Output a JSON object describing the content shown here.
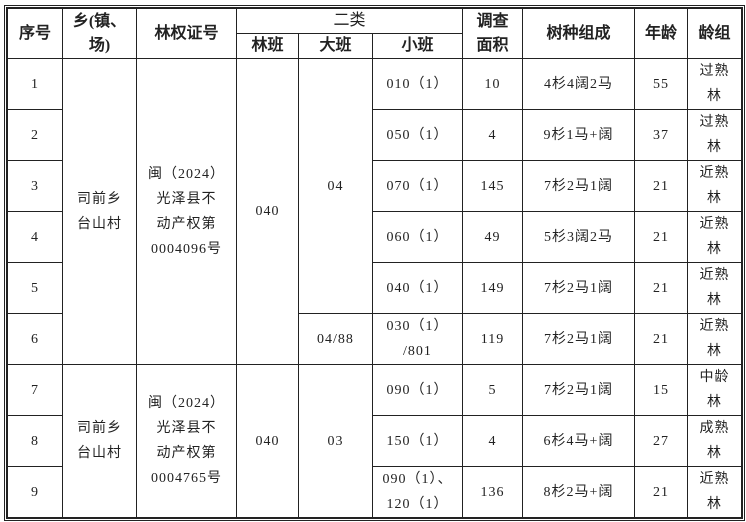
{
  "headers": {
    "seq": "序号",
    "township": "乡(镇、\n场)",
    "cert": "林权证号",
    "class2": "二类",
    "lin_ban": "林班",
    "da_ban": "大班",
    "xiao_ban": "小班",
    "area": "调查\n面积",
    "species": "树种组成",
    "age": "年龄",
    "age_group": "龄组"
  },
  "groups": [
    {
      "township": "司前乡\n台山村",
      "cert": "闽（2024）\n光泽县不\n动产权第\n0004096号",
      "lin_ban": "040",
      "da_ban_a": "04",
      "da_ban_b": "04/88"
    },
    {
      "township": "司前乡\n台山村",
      "cert": "闽（2024）\n光泽县不\n动产权第\n0004765号",
      "lin_ban": "040",
      "da_ban_a": "03"
    }
  ],
  "rows": [
    {
      "seq": "1",
      "xiao_ban": "010（1）",
      "area": "10",
      "species": "4杉4阔2马",
      "age": "55",
      "age_group": "过熟\n林"
    },
    {
      "seq": "2",
      "xiao_ban": "050（1）",
      "area": "4",
      "species": "9杉1马+阔",
      "age": "37",
      "age_group": "过熟\n林"
    },
    {
      "seq": "3",
      "xiao_ban": "070（1）",
      "area": "145",
      "species": "7杉2马1阔",
      "age": "21",
      "age_group": "近熟\n林"
    },
    {
      "seq": "4",
      "xiao_ban": "060（1）",
      "area": "49",
      "species": "5杉3阔2马",
      "age": "21",
      "age_group": "近熟\n林"
    },
    {
      "seq": "5",
      "xiao_ban": "040（1）",
      "area": "149",
      "species": "7杉2马1阔",
      "age": "21",
      "age_group": "近熟\n林"
    },
    {
      "seq": "6",
      "xiao_ban": "030（1）\n/801",
      "area": "119",
      "species": "7杉2马1阔",
      "age": "21",
      "age_group": "近熟\n林"
    },
    {
      "seq": "7",
      "xiao_ban": "090（1）",
      "area": "5",
      "species": "7杉2马1阔",
      "age": "15",
      "age_group": "中龄\n林"
    },
    {
      "seq": "8",
      "xiao_ban": "150（1）",
      "area": "4",
      "species": "6杉4马+阔",
      "age": "27",
      "age_group": "成熟\n林"
    },
    {
      "seq": "9",
      "xiao_ban": "090（1）、\n120（1）",
      "area": "136",
      "species": "8杉2马+阔",
      "age": "21",
      "age_group": "近熟\n林"
    }
  ]
}
